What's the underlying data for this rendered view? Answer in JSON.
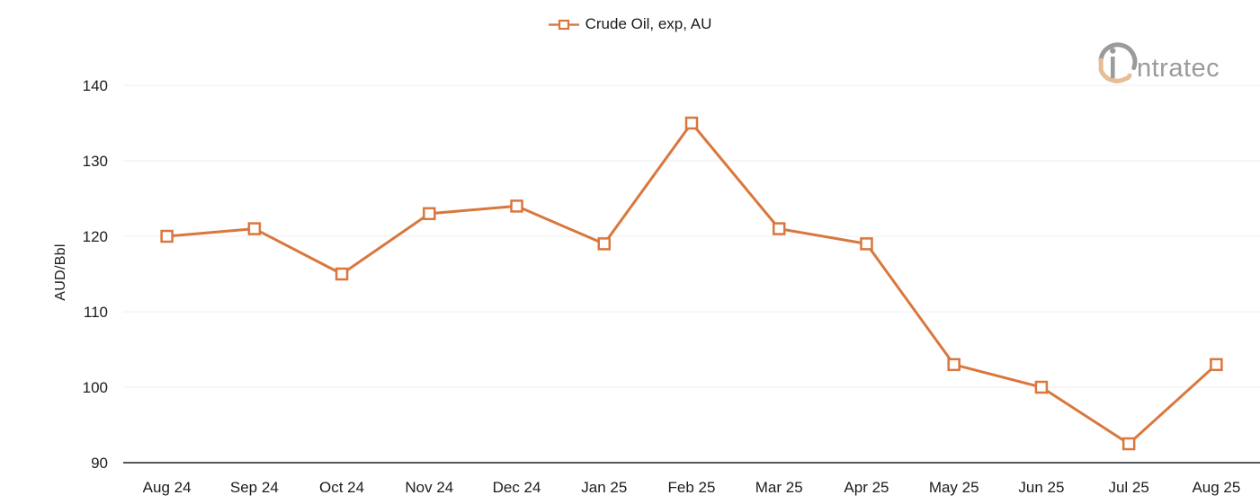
{
  "legend": {
    "label": "Crude Oil, exp, AU"
  },
  "y_axis": {
    "title": "AUD/Bbl"
  },
  "logo": {
    "brand": "intratec",
    "wordmark_rest": "ntratec"
  },
  "chart_data": {
    "type": "line",
    "title": "",
    "categories": [
      "Aug 24",
      "Sep 24",
      "Oct 24",
      "Nov 24",
      "Dec 24",
      "Jan 25",
      "Feb 25",
      "Mar 25",
      "Apr 25",
      "May 25",
      "Jun 25",
      "Jul 25",
      "Aug 25"
    ],
    "series": [
      {
        "name": "Crude Oil, exp, AU",
        "values": [
          120,
          121,
          115,
          123,
          124,
          119,
          135,
          121,
          119,
          103,
          100,
          92.5,
          103
        ]
      }
    ],
    "xlabel": "",
    "ylabel": "AUD/Bbl",
    "ylim": [
      90,
      140
    ],
    "y_ticks": [
      90,
      100,
      110,
      120,
      130,
      140
    ],
    "grid": true,
    "legend_position": "top-center",
    "marker_style": "open-square",
    "colors": {
      "series": "#D9773C",
      "axis_line": "#55565B",
      "gridline": "#F1EEEE",
      "tick_text": "#1C1C1C",
      "logo_gray": "#9B9B9B",
      "logo_accent": "#E5BE96",
      "background": "#FFFFFF"
    }
  }
}
